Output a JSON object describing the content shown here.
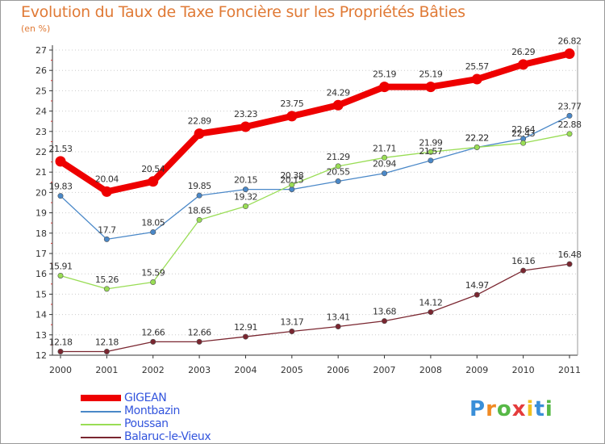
{
  "header": {
    "title": "Evolution du Taux de Taxe Foncière sur les Propriétés Bâties",
    "unit": "(en %)"
  },
  "chart_data": {
    "type": "line",
    "title": "Evolution du Taux de Taxe Foncière sur les Propriétés Bâties",
    "ylabel": "(en %)",
    "xlabel": "",
    "x": [
      "2000",
      "2001",
      "2002",
      "2003",
      "2004",
      "2005",
      "2006",
      "2007",
      "2008",
      "2009",
      "2010",
      "2011"
    ],
    "ylim": [
      12,
      27
    ],
    "yticks": [
      "12",
      "13",
      "14",
      "15",
      "16",
      "17",
      "18",
      "19",
      "20",
      "21",
      "22",
      "23",
      "24",
      "25",
      "26",
      "27"
    ],
    "grid": "horizontal dotted",
    "legend_position": "bottom-left",
    "series": [
      {
        "name": "Montbazin",
        "color": "#4a88c8",
        "values": [
          19.83,
          17.7,
          18.05,
          19.85,
          20.15,
          20.15,
          20.55,
          20.94,
          21.57,
          22.22,
          22.64,
          23.77
        ],
        "labels": [
          "19.83",
          "17.7",
          "18.05",
          "19.85",
          "20.15",
          "20.15",
          "20.55",
          "20.94",
          "21.57",
          "22.22",
          "22.64",
          "23.77"
        ]
      },
      {
        "name": "Poussan",
        "color": "#99dd55",
        "values": [
          15.91,
          15.26,
          15.59,
          18.65,
          19.32,
          20.38,
          21.29,
          21.71,
          21.99,
          22.22,
          22.43,
          22.88
        ],
        "labels": [
          "15.91",
          "15.26",
          "15.59",
          "18.65",
          "19.32",
          "20.38",
          "21.29",
          "21.71",
          "21.99",
          "22.22",
          "22.43",
          "22.88"
        ]
      },
      {
        "name": "Balaruc-le-Vieux",
        "color": "#7a2630",
        "values": [
          12.18,
          12.18,
          12.66,
          12.66,
          12.91,
          13.17,
          13.41,
          13.68,
          14.12,
          14.97,
          16.16,
          16.48
        ],
        "labels": [
          "12.18",
          "12.18",
          "12.66",
          "12.66",
          "12.91",
          "13.17",
          "13.41",
          "13.68",
          "14.12",
          "14.97",
          "16.16",
          "16.48"
        ]
      },
      {
        "name": "GIGEAN",
        "color": "#ee0000",
        "values": [
          21.53,
          20.04,
          20.54,
          22.89,
          23.23,
          23.75,
          24.29,
          25.19,
          25.19,
          25.57,
          26.29,
          26.82
        ],
        "labels": [
          "21.53",
          "20.04",
          "20.54",
          "22.89",
          "23.23",
          "23.75",
          "24.29",
          "25.19",
          "25.19",
          "25.57",
          "26.29",
          "26.82"
        ]
      }
    ]
  },
  "legend": {
    "items": [
      {
        "label": "GIGEAN",
        "color": "#ee0000"
      },
      {
        "label": "Montbazin",
        "color": "#4a88c8"
      },
      {
        "label": "Poussan",
        "color": "#99dd55"
      },
      {
        "label": "Balaruc-le-Vieux",
        "color": "#7a2630"
      }
    ]
  },
  "logo": {
    "letters": [
      "P",
      "r",
      "o",
      "x",
      "i",
      "t",
      "i"
    ],
    "colors": [
      "#3a8fd8",
      "#f08a24",
      "#57b847",
      "#e43c3c",
      "#f0c020",
      "#3a8fd8",
      "#57b847"
    ]
  }
}
